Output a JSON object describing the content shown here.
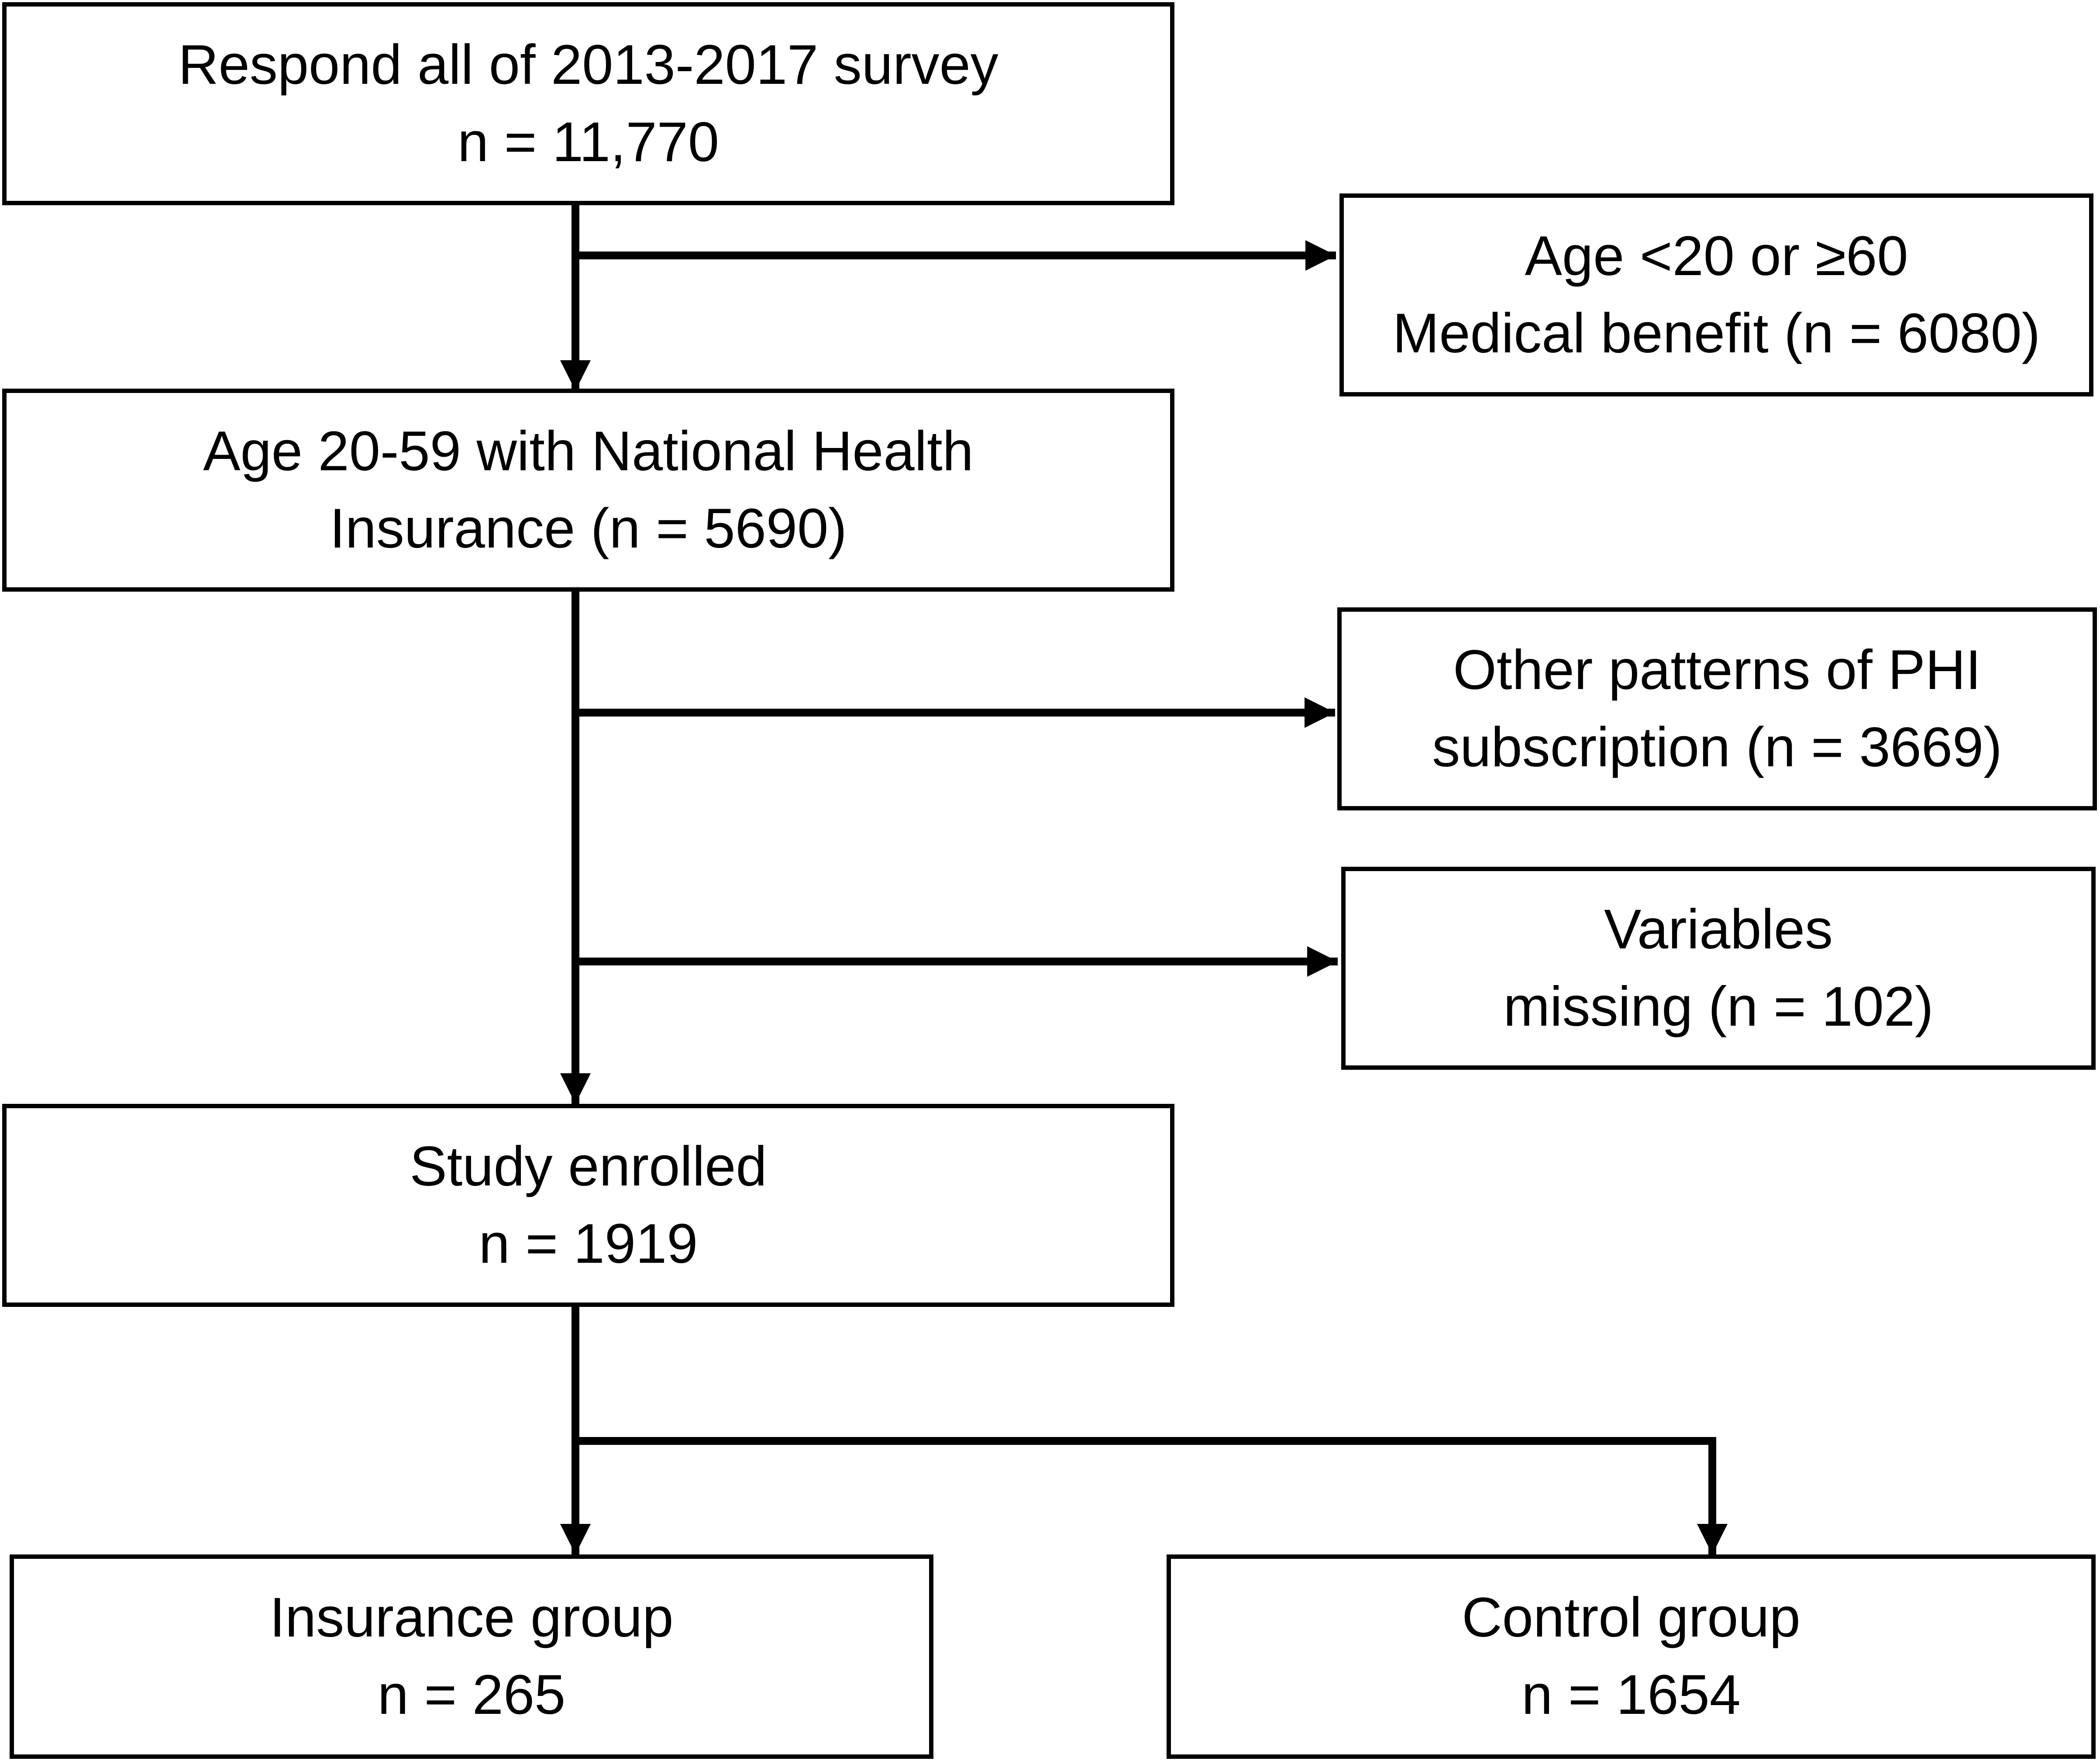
{
  "boxes": {
    "respond": {
      "line1": "Respond all of 2013-2017 survey",
      "line2": "n = 11,770"
    },
    "excluded_age": {
      "line1": "Age <20 or ≥60",
      "line2": "Medical benefit (n = 6080)"
    },
    "eligible": {
      "line1": "Age 20-59 with National Health",
      "line2": "Insurance (n = 5690)"
    },
    "excluded_phi": {
      "line1": "Other patterns of PHI",
      "line2": "subscription (n = 3669)"
    },
    "excluded_missing": {
      "line1": "Variables",
      "line2": "missing (n = 102)"
    },
    "enrolled": {
      "line1": "Study enrolled",
      "line2": "n = 1919"
    },
    "insurance_group": {
      "line1": "Insurance group",
      "line2": "n = 265"
    },
    "control_group": {
      "line1": "Control group",
      "line2": "n = 1654"
    }
  },
  "colors": {
    "line": "#000000",
    "background": "#ffffff"
  }
}
